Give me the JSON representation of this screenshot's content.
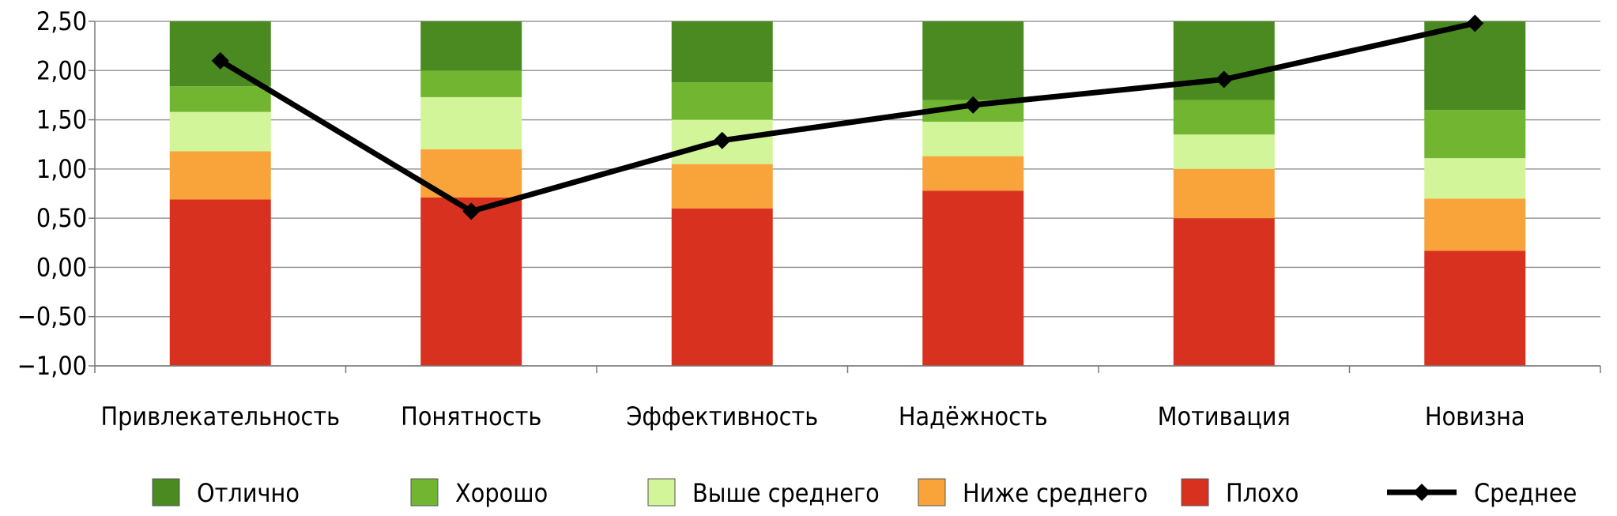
{
  "chart_data": {
    "type": "bar",
    "stacked": true,
    "categories": [
      "Привлекательность",
      "Понятность",
      "Эффективность",
      "Надёжность",
      "Мотивация",
      "Новизна"
    ],
    "yticks": [
      "2,50",
      "2,00",
      "1,50",
      "1,00",
      "0,50",
      "0,00",
      "−0,50",
      "−1,00"
    ],
    "ylim": [
      -1,
      2.5
    ],
    "grid": true,
    "legend_position": "bottom",
    "series": [
      {
        "name": "Плохо",
        "color": "#d9311f",
        "bottoms": [
          -1,
          -1,
          -1,
          -1,
          -1,
          -1
        ],
        "tops": [
          0.69,
          0.71,
          0.6,
          0.78,
          0.5,
          0.17
        ]
      },
      {
        "name": "Ниже среднего",
        "color": "#f9a43a",
        "bottoms": [
          0.69,
          0.71,
          0.6,
          0.78,
          0.5,
          0.17
        ],
        "tops": [
          1.18,
          1.2,
          1.05,
          1.13,
          1.0,
          0.7
        ]
      },
      {
        "name": "Выше среднего",
        "color": "#d3f59a",
        "bottoms": [
          1.18,
          1.2,
          1.05,
          1.13,
          1.0,
          0.7
        ],
        "tops": [
          1.58,
          1.73,
          1.5,
          1.48,
          1.35,
          1.11
        ]
      },
      {
        "name": "Хорошо",
        "color": "#72b531",
        "bottoms": [
          1.58,
          1.73,
          1.5,
          1.48,
          1.35,
          1.11
        ],
        "tops": [
          1.84,
          2.0,
          1.88,
          1.7,
          1.7,
          1.6
        ]
      },
      {
        "name": "Отлично",
        "color": "#4a8a21",
        "bottoms": [
          1.84,
          2.0,
          1.88,
          1.7,
          1.7,
          1.6
        ],
        "tops": [
          2.5,
          2.5,
          2.5,
          2.5,
          2.5,
          2.5
        ]
      }
    ],
    "line": {
      "name": "Среднее",
      "color": "#000000",
      "values": [
        2.1,
        0.57,
        1.29,
        1.65,
        1.91,
        2.48
      ]
    },
    "legend_order": [
      "Отлично",
      "Хорошо",
      "Выше среднего",
      "Ниже среднего",
      "Плохо",
      "Среднее"
    ]
  }
}
